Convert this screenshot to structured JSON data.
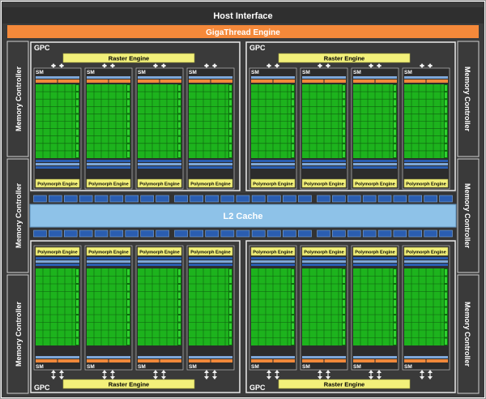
{
  "colors": {
    "frame_bg": "#3b3b3b",
    "host_bar": "#2f2f2f",
    "giga_bar": "#f5893a",
    "panel_border": "#e9e9e9",
    "gpc_label": "#ffffff",
    "raster_fill": "#f2f07a",
    "poly_fill": "#f2f07a",
    "core_green": "#1db31d",
    "core_grid": "#0f5f0f",
    "blue_bar": "#2a5db0",
    "blue_light": "#7ea7d8",
    "orange_bar": "#f0883a",
    "l2_fill": "#8ec2e8",
    "arrow": "#f0f0f0"
  },
  "diagram": {
    "host_interface": "Host Interface",
    "gigathread_engine": "GigaThread Engine",
    "l2_cache": "L2 Cache",
    "memory_controllers": [
      "Memory Controller",
      "Memory Controller",
      "Memory Controller",
      "Memory Controller",
      "Memory Controller",
      "Memory Controller"
    ],
    "gpcs": [
      {
        "label": "GPC",
        "raster_engine": "Raster Engine",
        "sms": [
          {
            "label": "SM",
            "polymorph": "Polymorph Engine"
          },
          {
            "label": "SM",
            "polymorph": "Polymorph Engine"
          },
          {
            "label": "SM",
            "polymorph": "Polymorph Engine"
          },
          {
            "label": "SM",
            "polymorph": "Polymorph Engine"
          }
        ]
      },
      {
        "label": "GPC",
        "raster_engine": "Raster Engine",
        "sms": [
          {
            "label": "SM",
            "polymorph": "Polymorph Engine"
          },
          {
            "label": "SM",
            "polymorph": "Polymorph Engine"
          },
          {
            "label": "SM",
            "polymorph": "Polymorph Engine"
          },
          {
            "label": "SM",
            "polymorph": "Polymorph Engine"
          }
        ]
      },
      {
        "label": "GPC",
        "raster_engine": "Raster Engine",
        "sms": [
          {
            "label": "SM",
            "polymorph": "Polymorph Engine"
          },
          {
            "label": "SM",
            "polymorph": "Polymorph Engine"
          },
          {
            "label": "SM",
            "polymorph": "Polymorph Engine"
          },
          {
            "label": "SM",
            "polymorph": "Polymorph Engine"
          }
        ]
      },
      {
        "label": "GPC",
        "raster_engine": "Raster Engine",
        "sms": [
          {
            "label": "SM",
            "polymorph": "Polymorph Engine"
          },
          {
            "label": "SM",
            "polymorph": "Polymorph Engine"
          },
          {
            "label": "SM",
            "polymorph": "Polymorph Engine"
          },
          {
            "label": "SM",
            "polymorph": "Polymorph Engine"
          }
        ]
      }
    ]
  }
}
